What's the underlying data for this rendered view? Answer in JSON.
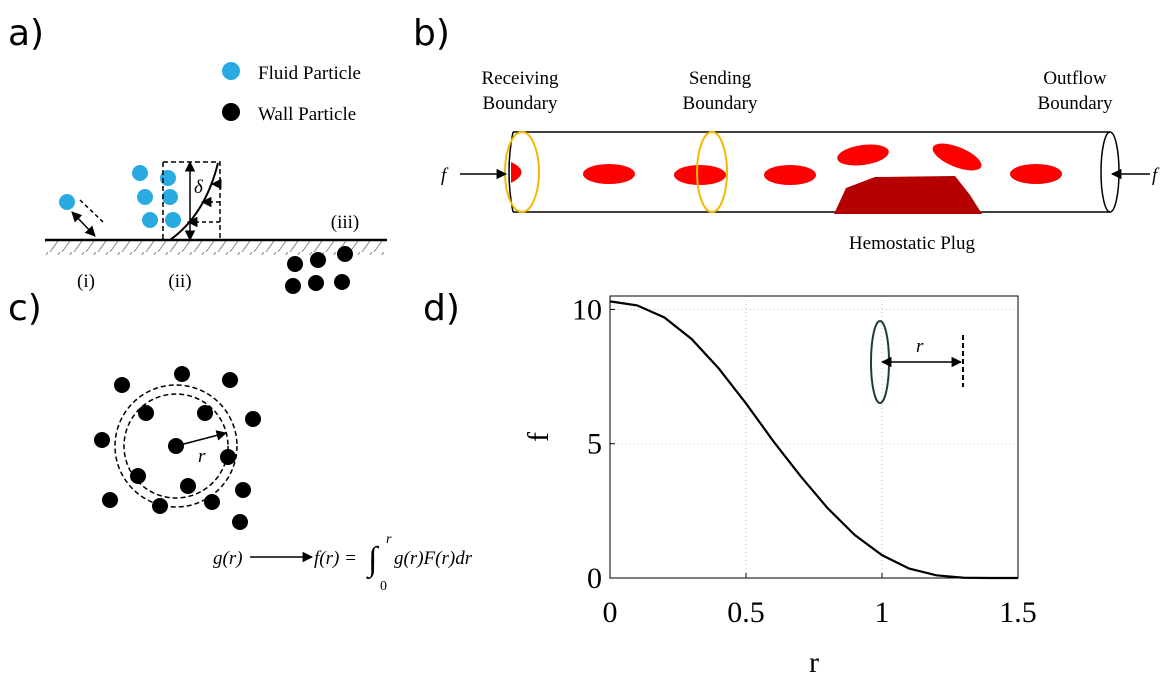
{
  "panel_a": {
    "label": "a)",
    "legend": [
      "Fluid Particle",
      "Wall Particle"
    ],
    "delta": "δ",
    "cases": [
      "(i)",
      "(ii)",
      "(iii)"
    ]
  },
  "panel_b": {
    "label": "b)",
    "boundaries": [
      [
        "Receiving",
        "Boundary"
      ],
      [
        "Sending",
        "Boundary"
      ],
      [
        "Outflow",
        "Boundary"
      ]
    ],
    "force_left": "f",
    "force_right": "f",
    "plug": "Hemostatic Plug"
  },
  "panel_c": {
    "label": "c)",
    "radius": "r",
    "formula": {
      "left": "g(r)",
      "right": "f(r) =",
      "integral": "∫",
      "lower": "0",
      "upper": "r",
      "integrand": "g(r)F(r)dr"
    }
  },
  "panel_d": {
    "label": "d)",
    "inset_radius": "r"
  },
  "chart_data": {
    "type": "line",
    "xlabel": "r",
    "ylabel": "f",
    "x": [
      0,
      0.1,
      0.2,
      0.3,
      0.4,
      0.5,
      0.6,
      0.7,
      0.8,
      0.9,
      1.0,
      1.1,
      1.2,
      1.3,
      1.4,
      1.5
    ],
    "values": [
      10.3,
      10.15,
      9.7,
      8.9,
      7.8,
      6.5,
      5.1,
      3.8,
      2.6,
      1.6,
      0.85,
      0.35,
      0.1,
      0.01,
      0,
      0
    ],
    "color": "#000000",
    "xlim": [
      0,
      1.5
    ],
    "ylim": [
      0,
      10.5
    ],
    "xticks": [
      0,
      0.5,
      1,
      1.5
    ],
    "yticks": [
      0,
      5,
      10
    ],
    "grid": true
  }
}
